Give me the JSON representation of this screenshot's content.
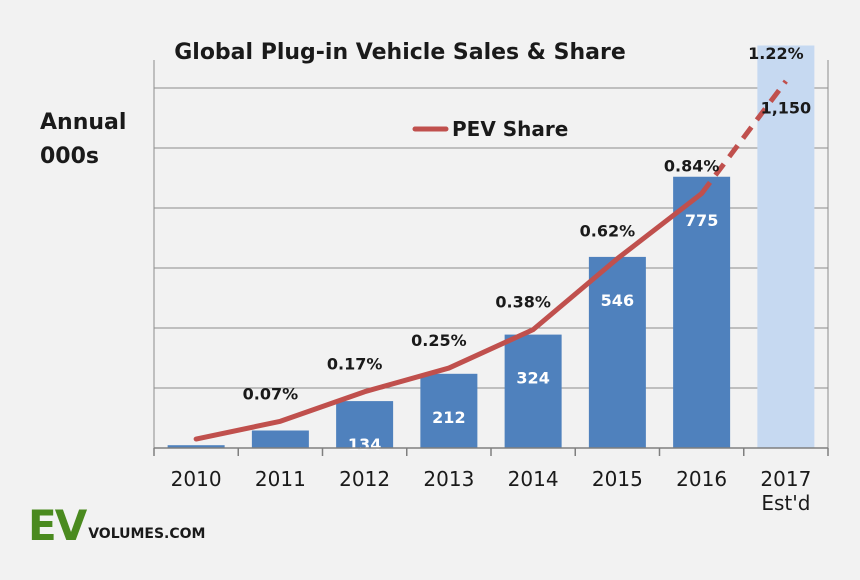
{
  "chart_data": {
    "type": "bar",
    "title": "Global Plug-in Vehicle Sales & Share",
    "ylabel": [
      "Annual",
      "000s"
    ],
    "categories": [
      [
        "2010"
      ],
      [
        "2011"
      ],
      [
        "2012"
      ],
      [
        "2013"
      ],
      [
        "2014"
      ],
      [
        "2015"
      ],
      [
        "2016"
      ],
      [
        "2017",
        "Est'd"
      ]
    ],
    "ylim": [
      0,
      1200
    ],
    "series": [
      {
        "name": "Annual sales (000s)",
        "values": [
          8,
          50,
          134,
          212,
          324,
          546,
          775,
          1150
        ],
        "value_labels": [
          "",
          "",
          "134",
          "212",
          "324",
          "546",
          "775",
          "1,150"
        ],
        "estimated": [
          false,
          false,
          false,
          false,
          false,
          false,
          false,
          true
        ]
      },
      {
        "name": "PEV Share",
        "unit": "%",
        "values": [
          0.01,
          0.07,
          0.17,
          0.25,
          0.38,
          0.62,
          0.84,
          1.22
        ],
        "value_labels": [
          "",
          "0.07%",
          "0.17%",
          "0.25%",
          "0.38%",
          "0.62%",
          "0.84%",
          "1.22%"
        ],
        "estimated": [
          false,
          false,
          false,
          false,
          false,
          false,
          false,
          true
        ]
      }
    ],
    "legend": {
      "label": "PEV Share",
      "position": "top-center"
    },
    "grid": true
  },
  "colors": {
    "background": "#f2f2f2",
    "bar": "#4f81bd",
    "bar_estimate": "#c6d9f1",
    "line": "#c0504d",
    "grid": "#8c8c8c",
    "logo_green": "#4a8a1f"
  },
  "logo": {
    "ev": "EV",
    "rest": "VOLUMES.COM"
  }
}
